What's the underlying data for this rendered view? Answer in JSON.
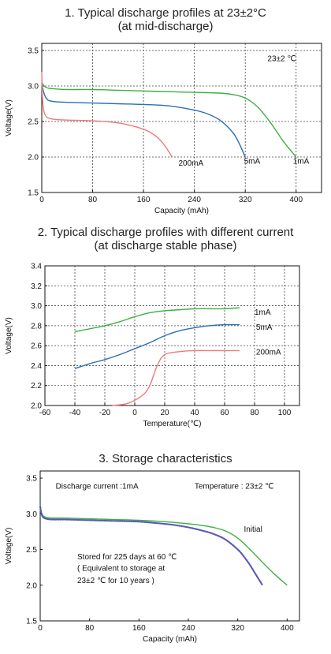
{
  "chart_data": [
    {
      "type": "line",
      "title": "1. Typical discharge profiles at 23±2°C\n(at mid-discharge)",
      "xlabel": "Capacity (mAh)",
      "ylabel": "Voltage(V)",
      "xlim": [
        0,
        440
      ],
      "ylim": [
        1.5,
        3.6
      ],
      "xticks": [
        0,
        80,
        160,
        240,
        320,
        400
      ],
      "yticks": [
        1.5,
        2.0,
        2.5,
        3.0,
        3.5
      ],
      "grid": true,
      "annotations": [
        {
          "text": "23±2 ℃",
          "x": 355,
          "y": 3.35
        }
      ],
      "series": [
        {
          "name": "1mA",
          "color": "#3cb043",
          "label_at": [
            395,
            1.95
          ],
          "x": [
            0,
            2,
            5,
            10,
            20,
            40,
            80,
            120,
            160,
            200,
            240,
            280,
            300,
            320,
            340,
            360,
            380,
            400
          ],
          "y": [
            3.05,
            3.02,
            2.99,
            2.97,
            2.96,
            2.95,
            2.95,
            2.94,
            2.93,
            2.92,
            2.91,
            2.9,
            2.88,
            2.83,
            2.7,
            2.48,
            2.22,
            2.0
          ]
        },
        {
          "name": "5mA",
          "color": "#2a6fb5",
          "label_at": [
            318,
            1.95
          ],
          "x": [
            0,
            2,
            5,
            10,
            20,
            40,
            80,
            120,
            160,
            200,
            240,
            260,
            280,
            300,
            310,
            320
          ],
          "y": [
            3.03,
            2.95,
            2.86,
            2.8,
            2.78,
            2.77,
            2.76,
            2.75,
            2.74,
            2.72,
            2.66,
            2.61,
            2.52,
            2.35,
            2.2,
            2.0
          ]
        },
        {
          "name": "200mA",
          "color": "#f07878",
          "label_at": [
            215,
            1.92
          ],
          "x": [
            0,
            1,
            3,
            6,
            10,
            20,
            40,
            80,
            120,
            150,
            170,
            185,
            195,
            205
          ],
          "y": [
            3.2,
            2.85,
            2.66,
            2.58,
            2.55,
            2.53,
            2.52,
            2.51,
            2.48,
            2.42,
            2.35,
            2.25,
            2.14,
            2.0
          ]
        }
      ]
    },
    {
      "type": "line",
      "title": "2. Typical discharge profiles with different current\n(at discharge stable phase)",
      "xlabel": "Temperature(℃)",
      "ylabel": "Voltage(V)",
      "xlim": [
        -60,
        110
      ],
      "ylim": [
        2.0,
        3.4
      ],
      "xticks": [
        -60,
        -40,
        -20,
        0,
        20,
        40,
        60,
        80,
        100
      ],
      "yticks": [
        2.0,
        2.2,
        2.4,
        2.6,
        2.8,
        3.0,
        3.2,
        3.4
      ],
      "grid": true,
      "series": [
        {
          "name": "1mA",
          "color": "#3cb043",
          "label_at": [
            80,
            2.94
          ],
          "x": [
            -40,
            -20,
            -10,
            0,
            10,
            20,
            30,
            40,
            50,
            60,
            70
          ],
          "y": [
            2.74,
            2.8,
            2.84,
            2.89,
            2.93,
            2.95,
            2.96,
            2.97,
            2.97,
            2.97,
            2.98
          ]
        },
        {
          "name": "5mA",
          "color": "#2a6fb5",
          "label_at": [
            81,
            2.79
          ],
          "x": [
            -40,
            -30,
            -20,
            -10,
            0,
            10,
            20,
            30,
            40,
            50,
            60,
            70
          ],
          "y": [
            2.37,
            2.42,
            2.46,
            2.51,
            2.57,
            2.63,
            2.7,
            2.75,
            2.78,
            2.8,
            2.81,
            2.81
          ]
        },
        {
          "name": "200mA",
          "color": "#f07878",
          "label_at": [
            81,
            2.54
          ],
          "x": [
            -15,
            -5,
            5,
            10,
            15,
            20,
            30,
            40,
            50,
            60,
            70
          ],
          "y": [
            2.0,
            2.02,
            2.1,
            2.2,
            2.4,
            2.51,
            2.54,
            2.55,
            2.55,
            2.55,
            2.55
          ]
        }
      ]
    },
    {
      "type": "line",
      "title": "3. Storage characteristics",
      "xlabel": "Capacity (mAh)",
      "ylabel": "Voltage(V)",
      "xlim": [
        0,
        420
      ],
      "ylim": [
        1.5,
        3.6
      ],
      "xticks": [
        0,
        80,
        160,
        240,
        320,
        400
      ],
      "yticks": [
        1.5,
        2.0,
        2.5,
        3.0,
        3.5
      ],
      "grid": false,
      "annotations": [
        {
          "text": "Discharge current  :1mA",
          "x": 25,
          "y": 3.35
        },
        {
          "text": "Temperature : 23±2 ℃",
          "x": 250,
          "y": 3.35
        },
        {
          "text": "Initial",
          "x": 330,
          "y": 2.75
        },
        {
          "text": "Stored for 225 days at 60 ℃",
          "x": 60,
          "y": 2.36
        },
        {
          "text": "( Equivalent to storage at",
          "x": 60,
          "y": 2.2
        },
        {
          "text": "23±2 ℃ for 10 years   )",
          "x": 60,
          "y": 2.03
        }
      ],
      "series": [
        {
          "name": "Initial",
          "color": "#3cb043",
          "x": [
            0,
            2,
            5,
            10,
            20,
            40,
            80,
            120,
            160,
            200,
            240,
            260,
            280,
            300,
            320,
            340,
            360,
            380,
            400
          ],
          "y": [
            3.12,
            3.02,
            2.97,
            2.95,
            2.94,
            2.94,
            2.93,
            2.92,
            2.91,
            2.89,
            2.86,
            2.84,
            2.81,
            2.76,
            2.66,
            2.5,
            2.32,
            2.15,
            2.0
          ]
        },
        {
          "name": "Stored for 225 days at 60 ℃",
          "color": "#5a58b8",
          "dotted": true,
          "x": [
            0,
            2,
            5,
            10,
            20,
            40,
            80,
            120,
            160,
            200,
            220,
            240,
            260,
            280,
            300,
            320,
            330,
            340,
            350,
            360
          ],
          "y": [
            3.1,
            3.0,
            2.95,
            2.93,
            2.92,
            2.92,
            2.91,
            2.9,
            2.89,
            2.86,
            2.84,
            2.81,
            2.77,
            2.72,
            2.64,
            2.5,
            2.4,
            2.28,
            2.14,
            2.0
          ]
        }
      ]
    }
  ]
}
